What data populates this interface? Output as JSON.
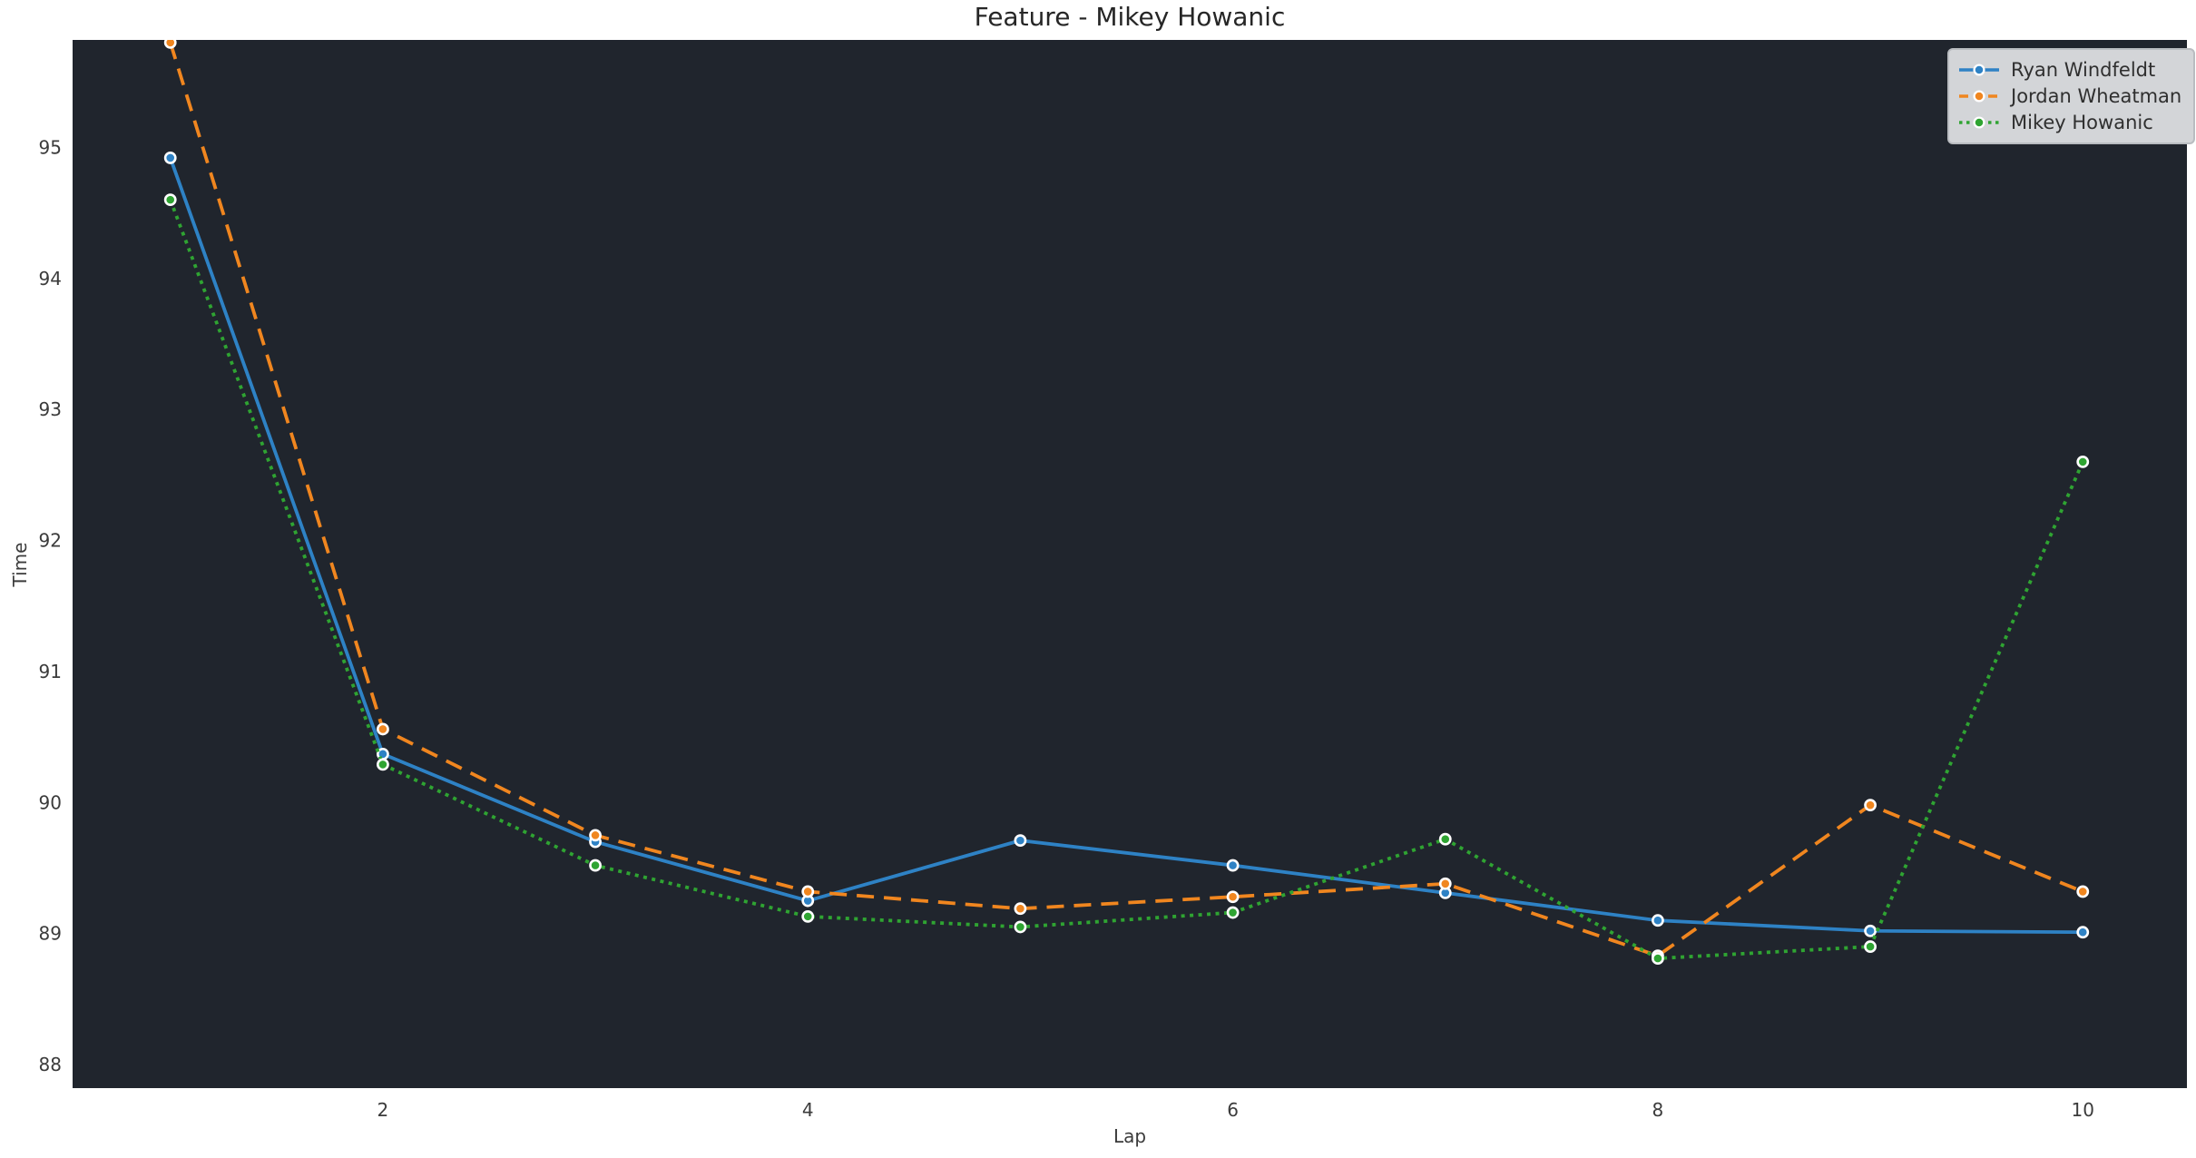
{
  "chart_data": {
    "type": "line",
    "title": "Feature - Mikey Howanic",
    "xlabel": "Lap",
    "ylabel": "Time",
    "x": [
      1,
      2,
      3,
      4,
      5,
      6,
      7,
      8,
      9,
      10
    ],
    "xticks": [
      2,
      4,
      6,
      8,
      10
    ],
    "yticks": [
      88,
      89,
      90,
      91,
      92,
      93,
      94,
      95
    ],
    "xlim": [
      0.54,
      10.49
    ],
    "ylim": [
      87.82,
      95.82
    ],
    "grid": false,
    "legend_position": "upper right",
    "series": [
      {
        "name": "Ryan Windfeldt",
        "color": "#2e82c5",
        "style": "solid",
        "values": [
          94.92,
          90.37,
          89.7,
          89.25,
          89.71,
          89.52,
          89.31,
          89.1,
          89.02,
          89.01
        ]
      },
      {
        "name": "Jordan Wheatman",
        "color": "#f0861f",
        "style": "dashed",
        "values": [
          95.8,
          90.56,
          89.75,
          89.32,
          89.19,
          89.28,
          89.38,
          88.83,
          89.98,
          89.32
        ]
      },
      {
        "name": "Mikey Howanic",
        "color": "#2fa432",
        "style": "dotted",
        "values": [
          94.6,
          90.29,
          89.52,
          89.13,
          89.05,
          89.16,
          89.72,
          88.81,
          88.9,
          92.6
        ]
      }
    ],
    "colors": {
      "figure_background": "#ffffff",
      "plot_background": "#20252d",
      "tick_text": "#3b3b3b",
      "title_text": "#262626",
      "legend_background": "#d3d5d8",
      "legend_border": "#b9bcc0",
      "marker_edge": "#ffffff"
    }
  }
}
